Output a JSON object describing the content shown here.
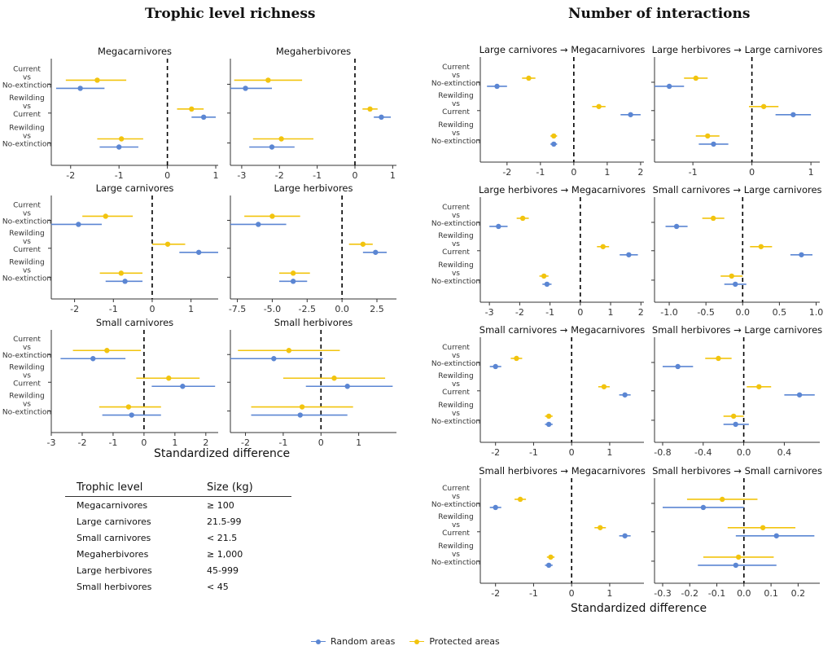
{
  "titles": {
    "left": "Trophic level richness",
    "right": "Number of interactions",
    "xaxis_left": "Standardized difference",
    "xaxis_right": "Standardized difference"
  },
  "colors": {
    "random": "#5b86d3",
    "protected": "#f2c40e",
    "axis": "#333333"
  },
  "comparisons": [
    [
      "Current",
      "vs",
      "No-extinction"
    ],
    [
      "Rewilding",
      "vs",
      "Current"
    ],
    [
      "Rewilding",
      "vs",
      "No-extinction"
    ]
  ],
  "legend": [
    {
      "label": "Random areas",
      "color": "#5b86d3"
    },
    {
      "label": "Protected areas",
      "color": "#f2c40e"
    }
  ],
  "table": {
    "headers": [
      "Trophic level",
      "Size (kg)"
    ],
    "rows": [
      [
        "Megacarnivores",
        "≥ 100"
      ],
      [
        "Large carnivores",
        "21.5-99"
      ],
      [
        "Small carnivores",
        "< 21.5"
      ],
      [
        "Megaherbivores",
        "≥ 1,000"
      ],
      [
        "Large herbivores",
        "45-999"
      ],
      [
        "Small herbivores",
        "< 45"
      ]
    ]
  },
  "chart_data": [
    {
      "type": "scatter",
      "title": "Megacarnivores",
      "xlim": [
        -2.4,
        1.05
      ],
      "xticks": [
        -2,
        -1,
        0,
        1
      ],
      "xtick_labels": [
        "-2",
        "-1",
        "0",
        "1"
      ],
      "series": [
        {
          "name": "Random areas",
          "est": [
            -1.8,
            0.75,
            -1.0
          ],
          "lo": [
            -2.3,
            0.5,
            -1.4
          ],
          "hi": [
            -1.3,
            1.0,
            -0.6
          ]
        },
        {
          "name": "Protected areas",
          "est": [
            -1.45,
            0.5,
            -0.95
          ],
          "lo": [
            -2.1,
            0.2,
            -1.45
          ],
          "hi": [
            -0.85,
            0.75,
            -0.5
          ]
        }
      ]
    },
    {
      "type": "scatter",
      "title": "Megaherbivores",
      "xlim": [
        -3.3,
        1.1
      ],
      "xticks": [
        -3,
        -2,
        -1,
        0,
        1
      ],
      "xtick_labels": [
        "-3",
        "-2",
        "-1",
        "0",
        "1"
      ],
      "series": [
        {
          "name": "Random areas",
          "est": [
            -2.9,
            0.7,
            -2.2
          ],
          "lo": [
            -3.6,
            0.5,
            -2.8
          ],
          "hi": [
            -2.2,
            0.95,
            -1.6
          ]
        },
        {
          "name": "Protected areas",
          "est": [
            -2.3,
            0.4,
            -1.95
          ],
          "lo": [
            -3.2,
            0.2,
            -2.7
          ],
          "hi": [
            -1.4,
            0.6,
            -1.1
          ]
        }
      ]
    },
    {
      "type": "scatter",
      "title": "Large carnivores",
      "xlim": [
        -2.6,
        1.7
      ],
      "xticks": [
        -2,
        -1,
        0,
        1
      ],
      "xtick_labels": [
        "-2",
        "-1",
        "0",
        "1"
      ],
      "series": [
        {
          "name": "Random areas",
          "est": [
            -1.9,
            1.2,
            -0.7
          ],
          "lo": [
            -2.6,
            0.7,
            -1.2
          ],
          "hi": [
            -1.3,
            1.7,
            -0.25
          ]
        },
        {
          "name": "Protected areas",
          "est": [
            -1.2,
            0.4,
            -0.8
          ],
          "lo": [
            -1.8,
            0.0,
            -1.35
          ],
          "hi": [
            -0.5,
            0.85,
            -0.25
          ]
        }
      ]
    },
    {
      "type": "scatter",
      "title": "Large herbivores",
      "xlim": [
        -8.0,
        3.9
      ],
      "xticks": [
        -7.5,
        -5,
        -2.5,
        0,
        2.5
      ],
      "xtick_labels": [
        "-7.5",
        "-5.0",
        "-2.5",
        "0.0",
        "2.5"
      ],
      "series": [
        {
          "name": "Random areas",
          "est": [
            -6.0,
            2.4,
            -3.5
          ],
          "lo": [
            -8.0,
            1.5,
            -4.5
          ],
          "hi": [
            -4.0,
            3.2,
            -2.5
          ]
        },
        {
          "name": "Protected areas",
          "est": [
            -5.0,
            1.5,
            -3.5
          ],
          "lo": [
            -7.0,
            0.5,
            -4.5
          ],
          "hi": [
            -3.0,
            2.2,
            -2.3
          ]
        }
      ]
    },
    {
      "type": "scatter",
      "title": "Small carnivores",
      "xlim": [
        -3.0,
        2.4
      ],
      "xticks": [
        -3,
        -2,
        -1,
        0,
        1,
        2
      ],
      "xtick_labels": [
        "-3",
        "-2",
        "-1",
        "0",
        "1",
        "2"
      ],
      "series": [
        {
          "name": "Random areas",
          "est": [
            -1.65,
            1.25,
            -0.4
          ],
          "lo": [
            -2.7,
            0.25,
            -1.35
          ],
          "hi": [
            -0.6,
            2.3,
            0.55
          ]
        },
        {
          "name": "Protected areas",
          "est": [
            -1.2,
            0.8,
            -0.5
          ],
          "lo": [
            -2.3,
            -0.25,
            -1.45
          ],
          "hi": [
            -0.1,
            1.8,
            0.55
          ]
        }
      ]
    },
    {
      "type": "scatter",
      "title": "Small herbivores",
      "xlim": [
        -2.4,
        2.0
      ],
      "xticks": [
        -2,
        -1,
        0,
        1
      ],
      "xtick_labels": [
        "-2",
        "-1",
        "0",
        "1"
      ],
      "series": [
        {
          "name": "Random areas",
          "est": [
            -1.25,
            0.7,
            -0.55
          ],
          "lo": [
            -2.55,
            -0.4,
            -1.85
          ],
          "hi": [
            0.05,
            1.9,
            0.7
          ]
        },
        {
          "name": "Protected areas",
          "est": [
            -0.85,
            0.35,
            -0.5
          ],
          "lo": [
            -2.2,
            -1.0,
            -1.85
          ],
          "hi": [
            0.5,
            1.7,
            0.85
          ]
        }
      ]
    },
    {
      "type": "scatter",
      "title": "Large carnivores → Megacarnivores",
      "xlim": [
        -2.8,
        2.1
      ],
      "xticks": [
        -2,
        -1,
        0,
        1,
        2
      ],
      "xtick_labels": [
        "-2",
        "-1",
        "0",
        "1",
        "2"
      ],
      "series": [
        {
          "name": "Random areas",
          "est": [
            -2.3,
            1.7,
            -0.6
          ],
          "lo": [
            -2.6,
            1.4,
            -0.7
          ],
          "hi": [
            -2.0,
            2.0,
            -0.5
          ]
        },
        {
          "name": "Protected areas",
          "est": [
            -1.35,
            0.75,
            -0.6
          ],
          "lo": [
            -1.55,
            0.55,
            -0.7
          ],
          "hi": [
            -1.15,
            0.95,
            -0.5
          ]
        }
      ]
    },
    {
      "type": "scatter",
      "title": "Large herbivores → Megacarnivores",
      "xlim": [
        -3.3,
        2.1
      ],
      "xticks": [
        -3,
        -2,
        -1,
        0,
        1,
        2
      ],
      "xtick_labels": [
        "-3",
        "-2",
        "-1",
        "0",
        "1",
        "2"
      ],
      "series": [
        {
          "name": "Random areas",
          "est": [
            -2.7,
            1.6,
            -1.1
          ],
          "lo": [
            -3.0,
            1.3,
            -1.25
          ],
          "hi": [
            -2.4,
            1.9,
            -0.95
          ]
        },
        {
          "name": "Protected areas",
          "est": [
            -1.9,
            0.75,
            -1.2
          ],
          "lo": [
            -2.1,
            0.55,
            -1.35
          ],
          "hi": [
            -1.7,
            0.95,
            -1.05
          ]
        }
      ]
    },
    {
      "type": "scatter",
      "title": "Small carnivores → Megacarnivores",
      "xlim": [
        -2.4,
        1.9
      ],
      "xticks": [
        -2,
        -1,
        0,
        1
      ],
      "xtick_labels": [
        "-2",
        "-1",
        "0",
        "1"
      ],
      "series": [
        {
          "name": "Random areas",
          "est": [
            -2.0,
            1.4,
            -0.6
          ],
          "lo": [
            -2.15,
            1.25,
            -0.7
          ],
          "hi": [
            -1.85,
            1.55,
            -0.5
          ]
        },
        {
          "name": "Protected areas",
          "est": [
            -1.45,
            0.85,
            -0.6
          ],
          "lo": [
            -1.6,
            0.7,
            -0.7
          ],
          "hi": [
            -1.3,
            1.0,
            -0.5
          ]
        }
      ]
    },
    {
      "type": "scatter",
      "title": "Small herbivores → Megacarnivores",
      "xlim": [
        -2.4,
        1.9
      ],
      "xticks": [
        -2,
        -1,
        0,
        1
      ],
      "xtick_labels": [
        "-2",
        "-1",
        "0",
        "1"
      ],
      "series": [
        {
          "name": "Random areas",
          "est": [
            -2.0,
            1.4,
            -0.6
          ],
          "lo": [
            -2.15,
            1.25,
            -0.7
          ],
          "hi": [
            -1.85,
            1.55,
            -0.5
          ]
        },
        {
          "name": "Protected areas",
          "est": [
            -1.35,
            0.75,
            -0.55
          ],
          "lo": [
            -1.5,
            0.6,
            -0.65
          ],
          "hi": [
            -1.2,
            0.9,
            -0.45
          ]
        }
      ]
    },
    {
      "type": "scatter",
      "title": "Large herbivores → Large carnivores",
      "xlim": [
        -1.65,
        1.15
      ],
      "xticks": [
        -1,
        0,
        1
      ],
      "xtick_labels": [
        "-1",
        "0",
        "1"
      ],
      "series": [
        {
          "name": "Random areas",
          "est": [
            -1.4,
            0.7,
            -0.65
          ],
          "lo": [
            -1.65,
            0.4,
            -0.9
          ],
          "hi": [
            -1.15,
            1.0,
            -0.4
          ]
        },
        {
          "name": "Protected areas",
          "est": [
            -0.95,
            0.2,
            -0.75
          ],
          "lo": [
            -1.15,
            -0.05,
            -0.95
          ],
          "hi": [
            -0.75,
            0.45,
            -0.55
          ]
        }
      ]
    },
    {
      "type": "scatter",
      "title": "Small carnivores → Large carnivores",
      "xlim": [
        -1.2,
        1.05
      ],
      "xticks": [
        -1.0,
        -0.5,
        0.0,
        0.5,
        1.0
      ],
      "xtick_labels": [
        "-1.0",
        "-0.5",
        "0.0",
        "0.5",
        "1.0"
      ],
      "series": [
        {
          "name": "Random areas",
          "est": [
            -0.9,
            0.8,
            -0.1
          ],
          "lo": [
            -1.05,
            0.65,
            -0.25
          ],
          "hi": [
            -0.75,
            0.95,
            0.05
          ]
        },
        {
          "name": "Protected areas",
          "est": [
            -0.4,
            0.25,
            -0.15
          ],
          "lo": [
            -0.55,
            0.1,
            -0.3
          ],
          "hi": [
            -0.25,
            0.4,
            0.0
          ]
        }
      ]
    },
    {
      "type": "scatter",
      "title": "Small herbivores → Large carnivores",
      "xlim": [
        -0.88,
        0.75
      ],
      "xticks": [
        -0.8,
        -0.4,
        0.0,
        0.4
      ],
      "xtick_labels": [
        "-0.8",
        "-0.4",
        "0.0",
        "0.4"
      ],
      "series": [
        {
          "name": "Random areas",
          "est": [
            -0.65,
            0.55,
            -0.08
          ],
          "lo": [
            -0.8,
            0.4,
            -0.2
          ],
          "hi": [
            -0.5,
            0.7,
            0.05
          ]
        },
        {
          "name": "Protected areas",
          "est": [
            -0.25,
            0.15,
            -0.1
          ],
          "lo": [
            -0.38,
            0.03,
            -0.2
          ],
          "hi": [
            -0.12,
            0.27,
            0.0
          ]
        }
      ]
    },
    {
      "type": "scatter",
      "title": "Small herbivores → Small carnivores",
      "xlim": [
        -0.33,
        0.28
      ],
      "xticks": [
        -0.3,
        -0.2,
        -0.1,
        0.0,
        0.1,
        0.2
      ],
      "xtick_labels": [
        "-0.3",
        "-0.2",
        "-0.1",
        "0.0",
        "0.1",
        "0.2"
      ],
      "series": [
        {
          "name": "Random areas",
          "est": [
            -0.15,
            0.12,
            -0.03
          ],
          "lo": [
            -0.3,
            -0.03,
            -0.17
          ],
          "hi": [
            0.0,
            0.26,
            0.12
          ]
        },
        {
          "name": "Protected areas",
          "est": [
            -0.08,
            0.07,
            -0.02
          ],
          "lo": [
            -0.21,
            -0.06,
            -0.15
          ],
          "hi": [
            0.05,
            0.19,
            0.11
          ]
        }
      ]
    }
  ]
}
